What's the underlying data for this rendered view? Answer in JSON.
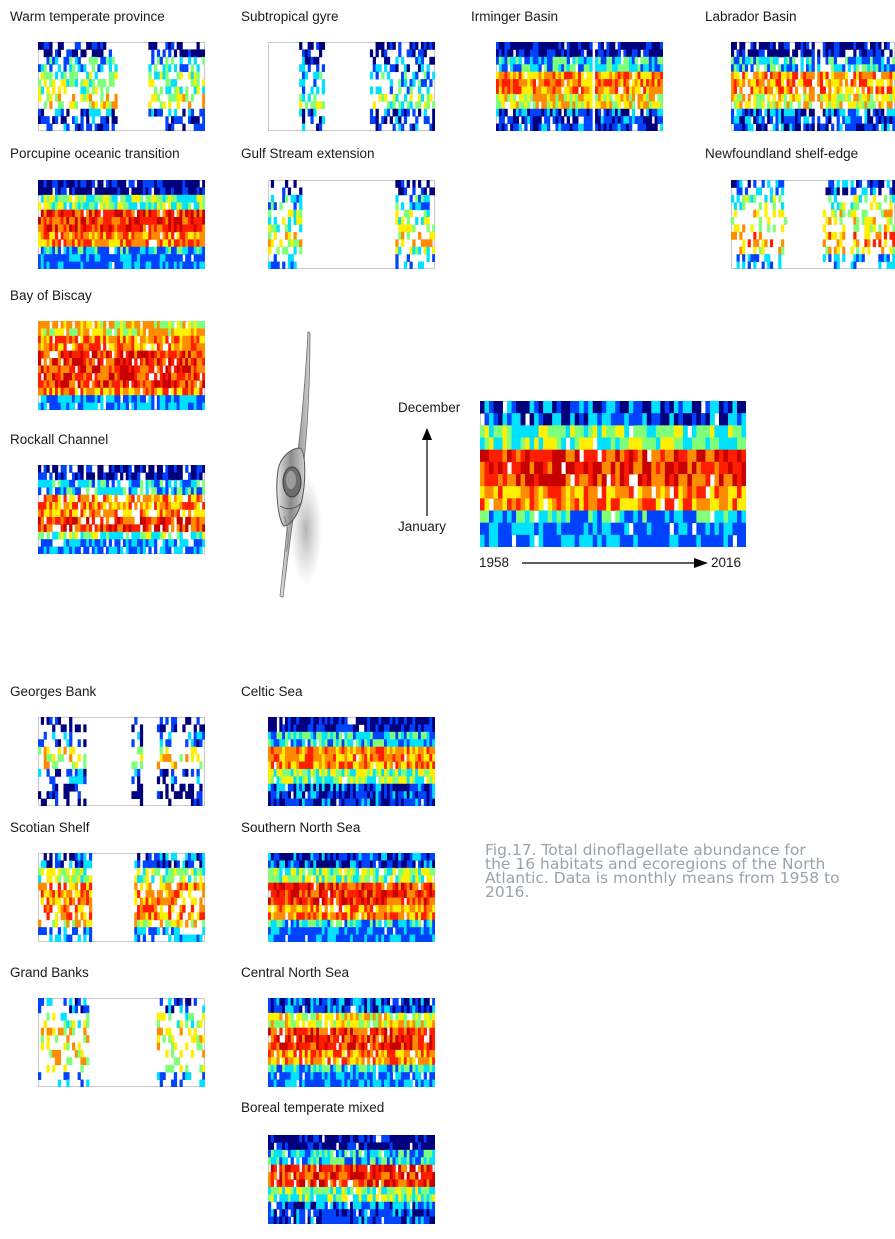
{
  "chart_data": {
    "type": "heatmap",
    "colors": [
      "#ffffff",
      "#00007f",
      "#0043ff",
      "#00e0ff",
      "#7fff7a",
      "#ffef00",
      "#ff8c00",
      "#ff1e00",
      "#c80000"
    ],
    "panels": [
      {
        "title": "Warm temperate province",
        "blank_cols": [
          [
            0.46,
            0.66
          ]
        ],
        "bands": [
          2,
          5,
          4,
          3,
          1
        ],
        "sparse": 0.45,
        "seed": 11
      },
      {
        "title": "Subtropical gyre",
        "blank_cols": [
          [
            0.0,
            0.17
          ],
          [
            0.33,
            0.6
          ]
        ],
        "bands": [
          2,
          4,
          3,
          2,
          1
        ],
        "sparse": 0.5,
        "seed": 12
      },
      {
        "title": "Irminger Basin",
        "blank_cols": [
          [
            0.56,
            0.58
          ]
        ],
        "bands": [
          2,
          5,
          6,
          3,
          1
        ],
        "sparse": 0.1,
        "seed": 13
      },
      {
        "title": "Labrador Basin",
        "blank_cols": [
          [
            0.5,
            0.52
          ]
        ],
        "bands": [
          2,
          5,
          6,
          3,
          1
        ],
        "sparse": 0.2,
        "seed": 14
      },
      {
        "title": "Porcupine oceanic transition",
        "blank_cols": [],
        "bands": [
          3,
          6,
          7,
          4,
          1
        ],
        "sparse": 0.05,
        "seed": 15
      },
      {
        "title": "Gulf Stream extension",
        "blank_cols": [
          [
            0.2,
            0.75
          ]
        ],
        "bands": [
          4,
          5,
          4,
          3,
          1
        ],
        "sparse": 0.5,
        "seed": 16
      },
      {
        "title": "Newfoundland shelf-edge",
        "blank_cols": [
          [
            0.33,
            0.55
          ]
        ],
        "bands": [
          5,
          6,
          5,
          4,
          2
        ],
        "sparse": 0.55,
        "seed": 17
      },
      {
        "title": "Bay of Biscay",
        "blank_cols": [],
        "bands": [
          6,
          7,
          7,
          6,
          5
        ],
        "sparse": 0.1,
        "seed": 18
      },
      {
        "title": "Rockall Channel",
        "blank_cols": [],
        "bands": [
          4,
          7,
          6,
          3,
          1
        ],
        "sparse": 0.2,
        "seed": 19
      },
      {
        "title": "Georges Bank",
        "blank_cols": [
          [
            0.28,
            0.55
          ],
          [
            0.62,
            0.7
          ]
        ],
        "bands": [
          1,
          2,
          5,
          2,
          1
        ],
        "sparse": 0.55,
        "seed": 20
      },
      {
        "title": "Celtic Sea",
        "blank_cols": [],
        "bands": [
          2,
          4,
          6,
          3,
          1
        ],
        "sparse": 0.05,
        "seed": 21
      },
      {
        "title": "Scotian Shelf",
        "blank_cols": [
          [
            0.32,
            0.56
          ]
        ],
        "bands": [
          5,
          6,
          6,
          4,
          2
        ],
        "sparse": 0.3,
        "seed": 22
      },
      {
        "title": "Southern North Sea",
        "blank_cols": [],
        "bands": [
          3,
          6,
          7,
          4,
          2
        ],
        "sparse": 0.08,
        "seed": 23
      },
      {
        "title": "Grand Banks",
        "blank_cols": [
          [
            0.3,
            0.7
          ]
        ],
        "bands": [
          4,
          5,
          5,
          4,
          2
        ],
        "sparse": 0.6,
        "seed": 24
      },
      {
        "title": "Central North Sea",
        "blank_cols": [],
        "bands": [
          3,
          6,
          7,
          5,
          2
        ],
        "sparse": 0.08,
        "seed": 25
      },
      {
        "title": "Boreal temperate mixed",
        "blank_cols": [],
        "bands": [
          2,
          4,
          7,
          3,
          1
        ],
        "sparse": 0.08,
        "seed": 26
      }
    ],
    "main": {
      "y_top": "December",
      "y_bottom": "January",
      "x_start": "1958",
      "x_end": "2016",
      "bands": [
        3,
        6,
        7,
        4,
        2
      ],
      "sparse": 0.05,
      "seed": 99
    }
  },
  "caption": "Fig.17. Total dinoflagellate abundance for\nthe 16 habitats and ecoregions of the North\nAtlantic. Data is monthly means from 1958 to\n2016."
}
